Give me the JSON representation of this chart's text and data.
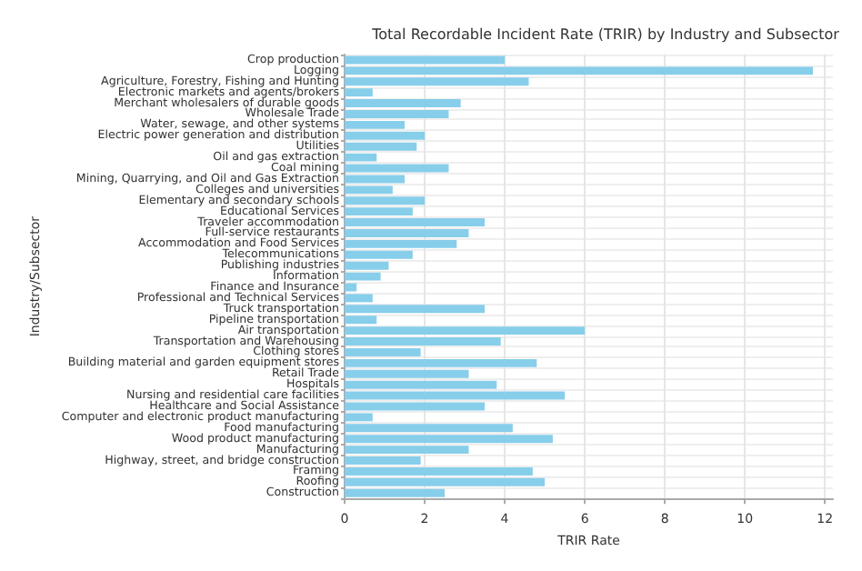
{
  "chart_data": {
    "type": "bar",
    "orientation": "horizontal",
    "title": "Total Recordable Incident Rate (TRIR) by Industry and Subsector",
    "xlabel": "TRIR Rate",
    "ylabel": "Industry/Subsector",
    "categories": [
      "Crop production",
      "Logging",
      "Agriculture, Forestry, Fishing and Hunting",
      "Electronic markets and agents/brokers",
      "Merchant wholesalers of durable goods",
      "Wholesale Trade",
      "Water, sewage, and other systems",
      "Electric power generation and distribution",
      "Utilities",
      "Oil and gas extraction",
      "Coal mining",
      "Mining, Quarrying, and Oil and Gas Extraction",
      "Colleges and universities",
      "Elementary and secondary schools",
      "Educational Services",
      "Traveler accommodation",
      "Full-service restaurants",
      "Accommodation and Food Services",
      "Telecommunications",
      "Publishing industries",
      "Information",
      "Finance and Insurance",
      "Professional and Technical Services",
      "Truck transportation",
      "Pipeline transportation",
      "Air transportation",
      "Transportation and Warehousing",
      "Clothing stores",
      "Building material and garden equipment stores",
      "Retail Trade",
      "Hospitals",
      "Nursing and residential care facilities",
      "Healthcare and Social Assistance",
      "Computer and electronic product manufacturing",
      "Food manufacturing",
      "Wood product manufacturing",
      "Manufacturing",
      "Highway, street, and bridge construction",
      "Framing",
      "Roofing",
      "Construction"
    ],
    "values": [
      4.0,
      11.7,
      4.6,
      0.7,
      2.9,
      2.6,
      1.5,
      2.0,
      1.8,
      0.8,
      2.6,
      1.5,
      1.2,
      2.0,
      1.7,
      3.5,
      3.1,
      2.8,
      1.7,
      1.1,
      0.9,
      0.3,
      0.7,
      3.5,
      0.8,
      6.0,
      3.9,
      1.9,
      4.8,
      3.1,
      3.8,
      5.5,
      3.5,
      0.7,
      4.2,
      5.2,
      3.1,
      1.9,
      4.7,
      5.0,
      2.5
    ],
    "color": "#87ceeb",
    "xlim": [
      0,
      12.2
    ],
    "xticks": [
      0,
      2,
      4,
      6,
      8,
      10,
      12
    ],
    "grid": true
  }
}
